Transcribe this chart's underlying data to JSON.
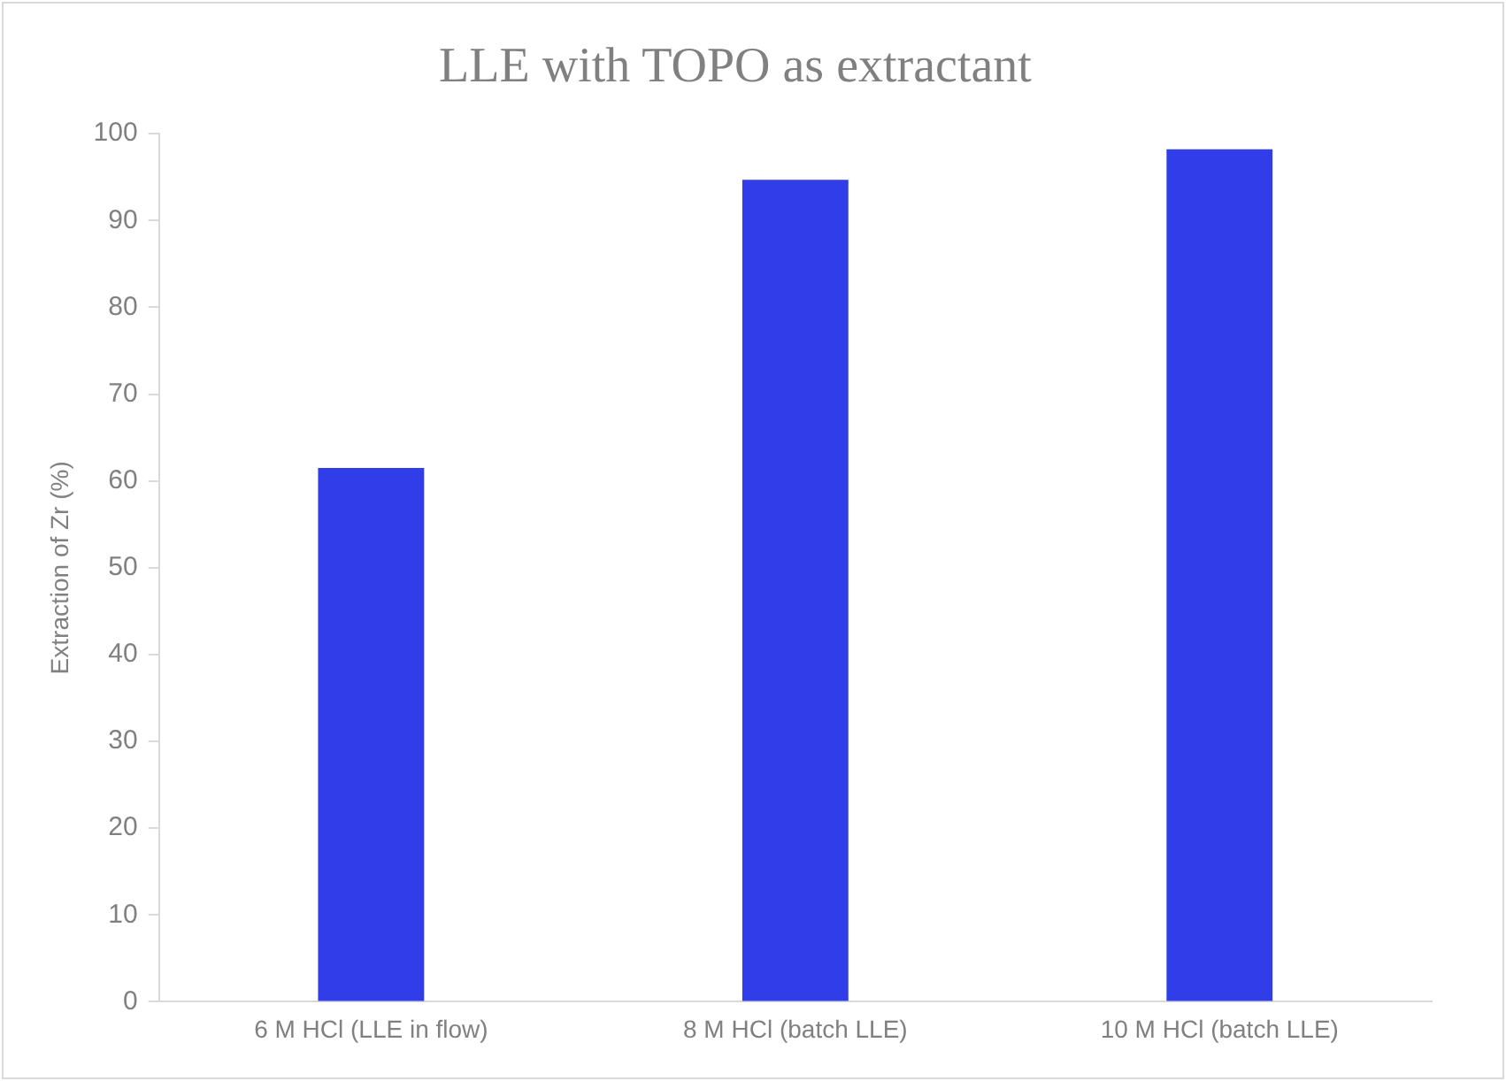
{
  "chart_data": {
    "type": "bar",
    "title": "LLE with TOPO as extractant",
    "ylabel": "Extraction of Zr (%)",
    "categories": [
      "6 M HCl (LLE in flow)",
      "8 M HCl (batch LLE)",
      "10 M HCl (batch LLE)"
    ],
    "values": [
      61.5,
      94.7,
      98.2
    ],
    "color": "#303de9",
    "ylim": [
      0,
      100
    ],
    "yticks": [
      0,
      10,
      20,
      30,
      40,
      50,
      60,
      70,
      80,
      90,
      100
    ],
    "grid": false
  }
}
